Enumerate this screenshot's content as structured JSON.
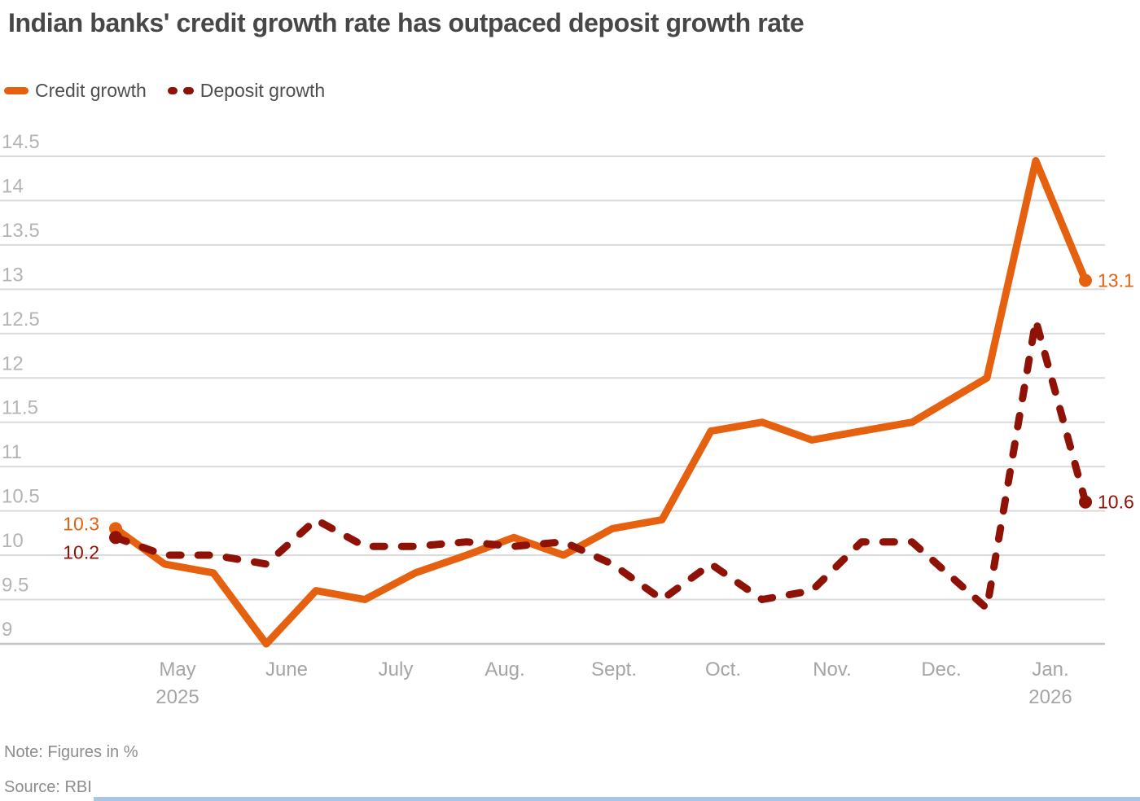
{
  "title": "Indian banks' credit growth rate has outpaced deposit growth rate",
  "note": "Note: Figures in %",
  "source": "Source: RBI",
  "colors": {
    "credit": "#e6610f",
    "deposit": "#8e1206",
    "grid": "#dadada",
    "axis": "#c6c6c6",
    "accent_bar": "#a9c7e4"
  },
  "chart_data": {
    "type": "line",
    "title": "Indian banks' credit growth rate has outpaced deposit growth rate",
    "unit": "%",
    "grid": true,
    "legend_position": "top-left",
    "y_axis": {
      "min": 9,
      "max": 14.5,
      "step": 0.5,
      "tick_labels": [
        "14.5",
        "14",
        "13.5",
        "13",
        "12.5",
        "12",
        "11.5",
        "11",
        "10.5",
        "10",
        "9.5",
        "9"
      ]
    },
    "x_axis": {
      "months": [
        {
          "label": "May",
          "sub": "2025"
        },
        {
          "label": "June",
          "sub": ""
        },
        {
          "label": "July",
          "sub": ""
        },
        {
          "label": "Aug.",
          "sub": ""
        },
        {
          "label": "Sept.",
          "sub": ""
        },
        {
          "label": "Oct.",
          "sub": ""
        },
        {
          "label": "Nov.",
          "sub": ""
        },
        {
          "label": "Dec.",
          "sub": ""
        },
        {
          "label": "Jan.",
          "sub": "2026"
        }
      ]
    },
    "month_tick_x": [
      218,
      352,
      486,
      620,
      754,
      888,
      1022,
      1156,
      1290
    ],
    "series": [
      {
        "name": "Credit growth",
        "color": "#e6610f",
        "line_style": "solid",
        "first_value_label": "10.3",
        "last_value_label": "13.1",
        "points": [
          [
            142,
            10.3
          ],
          [
            202,
            9.9
          ],
          [
            262,
            9.8
          ],
          [
            327,
            9.0
          ],
          [
            388,
            9.6
          ],
          [
            448,
            9.5
          ],
          [
            510,
            9.8
          ],
          [
            573,
            10.0
          ],
          [
            631,
            10.2
          ],
          [
            692,
            10.0
          ],
          [
            752,
            10.3
          ],
          [
            813,
            10.4
          ],
          [
            873,
            11.4
          ],
          [
            936,
            11.5
          ],
          [
            997,
            11.3
          ],
          [
            1058,
            11.4
          ],
          [
            1120,
            11.5
          ],
          [
            1212,
            12.0
          ],
          [
            1272,
            14.45
          ],
          [
            1333,
            13.1
          ]
        ]
      },
      {
        "name": "Deposit growth",
        "color": "#8e1206",
        "line_style": "dashed",
        "first_value_label": "10.2",
        "last_value_label": "10.6",
        "points": [
          [
            142,
            10.2
          ],
          [
            202,
            10.0
          ],
          [
            262,
            10.0
          ],
          [
            327,
            9.9
          ],
          [
            388,
            10.4
          ],
          [
            448,
            10.1
          ],
          [
            510,
            10.1
          ],
          [
            573,
            10.15
          ],
          [
            631,
            10.1
          ],
          [
            692,
            10.15
          ],
          [
            752,
            9.9
          ],
          [
            813,
            9.5
          ],
          [
            873,
            9.9
          ],
          [
            936,
            9.5
          ],
          [
            997,
            9.6
          ],
          [
            1058,
            10.15
          ],
          [
            1120,
            10.15
          ],
          [
            1212,
            9.4
          ],
          [
            1272,
            12.65
          ],
          [
            1333,
            10.6
          ]
        ]
      }
    ]
  }
}
